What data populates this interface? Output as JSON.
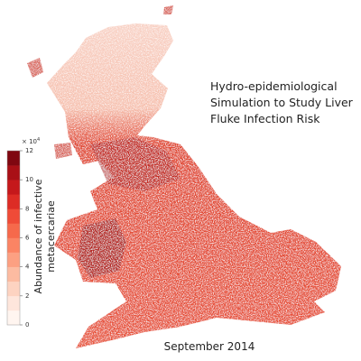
{
  "title_lines": [
    "Hydro-epidemiological",
    "Simulation to Study Liver",
    "Fluke Infection Risk"
  ],
  "date": "September 2014",
  "colorbar": {
    "label_lines": [
      "Abundance of infective",
      "metacercariae"
    ],
    "multiplier_label": "× 10",
    "multiplier_exponent": "4",
    "lim": [
      0,
      12
    ],
    "ticks": [
      0,
      2,
      4,
      6,
      8,
      10,
      12
    ],
    "colors": [
      "#fff5f0",
      "#fee6dc",
      "#fdd3c1",
      "#fcbba1",
      "#fca082",
      "#fb8464",
      "#f6694b",
      "#ef4b37",
      "#dd2c25",
      "#c5181b",
      "#a91016",
      "#7f0710"
    ]
  }
}
